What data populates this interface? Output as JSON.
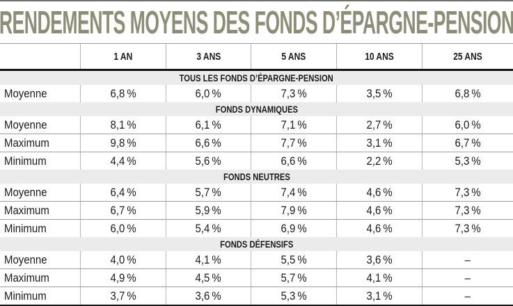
{
  "colors": {
    "title_green": "#8e8e76",
    "section_band_gray": "#ebebeb",
    "rule_dark": "#141414",
    "rule_gray": "#9d9d9d",
    "text": "#1a1a1a"
  },
  "chart_data": {
    "type": "table",
    "title": "RENDEMENTS MOYENS DES FONDS D’ÉPARGNE-PENSION",
    "columns": [
      "1 AN",
      "3 ANS",
      "5 ANS",
      "10 ANS",
      "25 ANS"
    ],
    "sections": [
      {
        "header": "TOUS LES FONDS D’ÉPARGNE-PENSION",
        "rows": [
          {
            "label": "Moyenne",
            "values": [
              "6,8 %",
              "6,0 %",
              "7,3 %",
              "3,5 %",
              "6,8 %"
            ]
          }
        ]
      },
      {
        "header": "FONDS DYNAMIQUES",
        "rows": [
          {
            "label": "Moyenne",
            "values": [
              "8,1 %",
              "6,1 %",
              "7,1 %",
              "2,7 %",
              "6,0 %"
            ]
          },
          {
            "label": "Maximum",
            "values": [
              "9,8 %",
              "6,6 %",
              "7,7 %",
              "3,1 %",
              "6,7 %"
            ]
          },
          {
            "label": "Minimum",
            "values": [
              "4,4 %",
              "5,6 %",
              "6,6 %",
              "2,2 %",
              "5,3 %"
            ]
          }
        ]
      },
      {
        "header": "FONDS NEUTRES",
        "rows": [
          {
            "label": "Moyenne",
            "values": [
              "6,4 %",
              "5,7 %",
              "7,4 %",
              "4,6 %",
              "7,3 %"
            ]
          },
          {
            "label": "Maximum",
            "values": [
              "6,7 %",
              "5,9 %",
              "7,9 %",
              "4,6 %",
              "7,3 %"
            ]
          },
          {
            "label": "Minimum",
            "values": [
              "6,0 %",
              "5,4 %",
              "6,9 %",
              "4,6 %",
              "7,3 %"
            ]
          }
        ]
      },
      {
        "header": "FONDS DÉFENSIFS",
        "rows": [
          {
            "label": "Moyenne",
            "values": [
              "4,0 %",
              "4,1 %",
              "5,5 %",
              "3,6 %",
              "–"
            ]
          },
          {
            "label": "Maximum",
            "values": [
              "4,9 %",
              "4,5 %",
              "5,7 %",
              "4,1 %",
              "–"
            ]
          },
          {
            "label": "Minimum",
            "values": [
              "3,7 %",
              "3,6 %",
              "5,3 %",
              "3,1 %",
              "–"
            ]
          }
        ]
      }
    ]
  }
}
